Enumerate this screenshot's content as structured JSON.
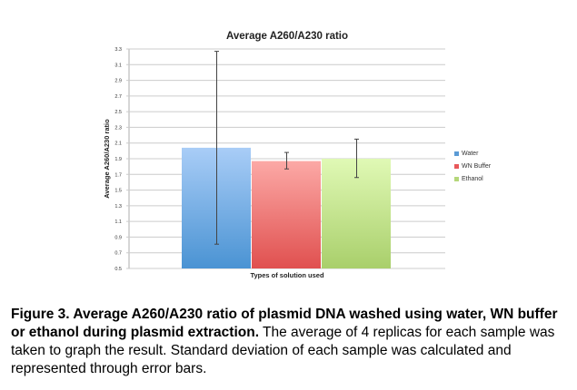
{
  "chart_data": {
    "type": "bar",
    "title": "Average A260/A230 ratio",
    "xlabel": "Types of solution used",
    "ylabel": "Average A260/A230 ratio",
    "ylim": [
      0.5,
      3.3
    ],
    "yticks": [
      "0.5",
      "0.7",
      "0.9",
      "1.1",
      "1.3",
      "1.5",
      "1.7",
      "1.9",
      "2.1",
      "2.3",
      "2.5",
      "2.7",
      "2.9",
      "3.1",
      "3.3"
    ],
    "grid": true,
    "legend_position": "right",
    "series": [
      {
        "name": "Water",
        "value": 2.04,
        "error_low": 0.81,
        "error_high": 3.27,
        "color": "#5b9bd5"
      },
      {
        "name": "WN Buffer",
        "value": 1.87,
        "error_low": 1.77,
        "error_high": 1.98,
        "color": "#e8585a"
      },
      {
        "name": "Ethanol",
        "value": 1.9,
        "error_low": 1.66,
        "error_high": 2.15,
        "color": "#b5d77a"
      }
    ]
  },
  "caption": {
    "bold": "Figure 3. Average A260/A230 ratio of plasmid DNA  washed using water, WN buffer or ethanol during plasmid extraction.",
    "text": " The average of 4 replicas for each sample was taken to graph the result. Standard deviation of each sample was calculated and represented through error bars."
  }
}
